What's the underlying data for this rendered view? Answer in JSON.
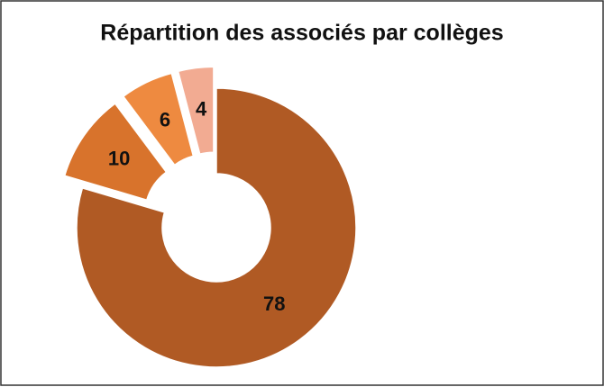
{
  "chart_data": {
    "type": "donut",
    "title": "Répartition des associés par collèges",
    "values": [
      78,
      10,
      6,
      4
    ],
    "colors": [
      "#B05A24",
      "#D8732C",
      "#EE8A40",
      "#F2AB92"
    ]
  }
}
